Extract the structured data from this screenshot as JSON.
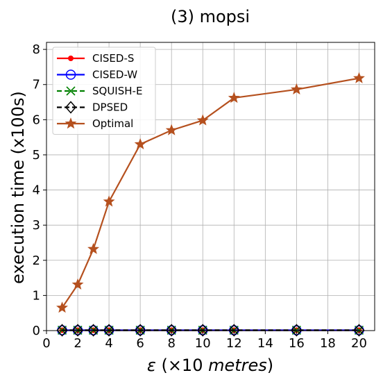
{
  "chart_data": {
    "type": "line",
    "title": "(3) mopsi",
    "xlabel_symbol": "ε",
    "xlabel_rest": "(×10 ",
    "xlabel_unit": "metres",
    "xlabel_close": ")",
    "ylabel": "execution time (x100s)",
    "xlim": [
      0,
      21
    ],
    "ylim": [
      0,
      8.2
    ],
    "xticks": [
      0,
      2,
      4,
      6,
      8,
      10,
      12,
      14,
      16,
      18,
      20
    ],
    "yticks": [
      0,
      1,
      2,
      3,
      4,
      5,
      6,
      7,
      8
    ],
    "grid": true,
    "legend_position": "top-left",
    "x": [
      1,
      2,
      3,
      4,
      6,
      8,
      10,
      12,
      16,
      20
    ],
    "series": [
      {
        "name": "CISED-S",
        "color": "#ff0000",
        "marker": "dot",
        "dash": "solid",
        "values": [
          0.01,
          0.01,
          0.01,
          0.01,
          0.01,
          0.01,
          0.01,
          0.01,
          0.01,
          0.01
        ]
      },
      {
        "name": "CISED-W",
        "color": "#0000ff",
        "marker": "circle",
        "dash": "solid",
        "values": [
          0.01,
          0.01,
          0.01,
          0.01,
          0.01,
          0.01,
          0.01,
          0.01,
          0.01,
          0.01
        ]
      },
      {
        "name": "SQUISH-E",
        "color": "#008000",
        "marker": "x",
        "dash": "dashed",
        "values": [
          0.01,
          0.01,
          0.01,
          0.01,
          0.01,
          0.01,
          0.01,
          0.01,
          0.01,
          0.01
        ]
      },
      {
        "name": "DPSED",
        "color": "#000000",
        "marker": "diamond",
        "dash": "dashed",
        "values": [
          0.01,
          0.01,
          0.01,
          0.01,
          0.01,
          0.01,
          0.01,
          0.01,
          0.01,
          0.01
        ]
      },
      {
        "name": "Optimal",
        "color": "#b5501e",
        "marker": "star",
        "dash": "solid",
        "values": [
          0.65,
          1.31,
          2.32,
          3.67,
          5.3,
          5.7,
          5.98,
          6.62,
          6.86,
          7.18
        ]
      }
    ]
  }
}
